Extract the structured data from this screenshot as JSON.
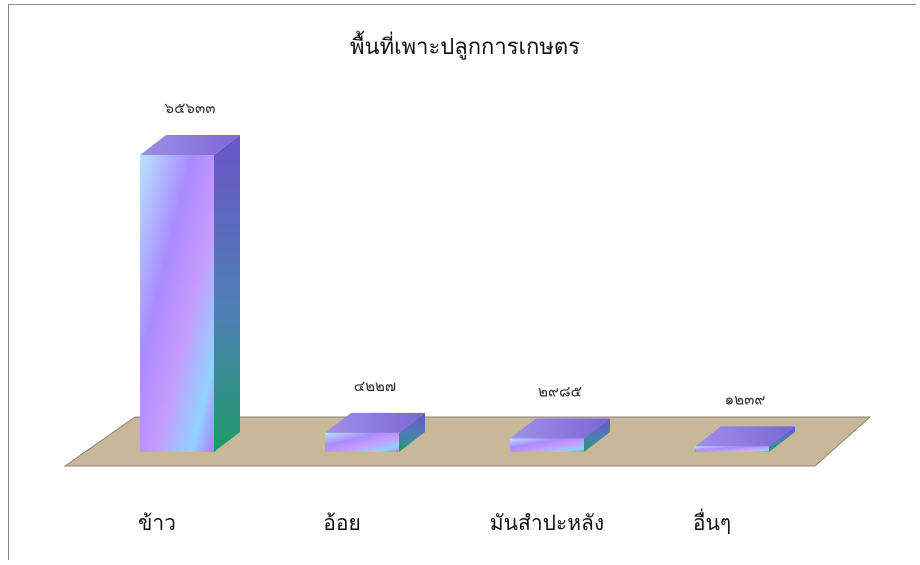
{
  "chart_data": {
    "type": "bar",
    "title": "พื้นที่เพาะปลูกการเกษตร",
    "categories": [
      "ข้าว",
      "อ้อย",
      "มันสำปะหลัง",
      "อื่นๆ"
    ],
    "values": [
      65633,
      4227,
      2985,
      1239
    ],
    "data_labels": [
      "๖๕๖๓๓",
      "๔๒๒๗",
      "๒๙๘๕",
      "๑๒๓๙"
    ],
    "xlabel": "",
    "ylabel": "",
    "ylim": [
      0,
      65633
    ],
    "grid": false,
    "legend": "none",
    "style": "3d-bar",
    "colors": {
      "bar_front_a": "#a9d8ff",
      "bar_front_b": "#b07cff",
      "bar_side": "#3f9a7a",
      "bar_top": "#8f7be0",
      "floor": "#c9b99a"
    }
  }
}
